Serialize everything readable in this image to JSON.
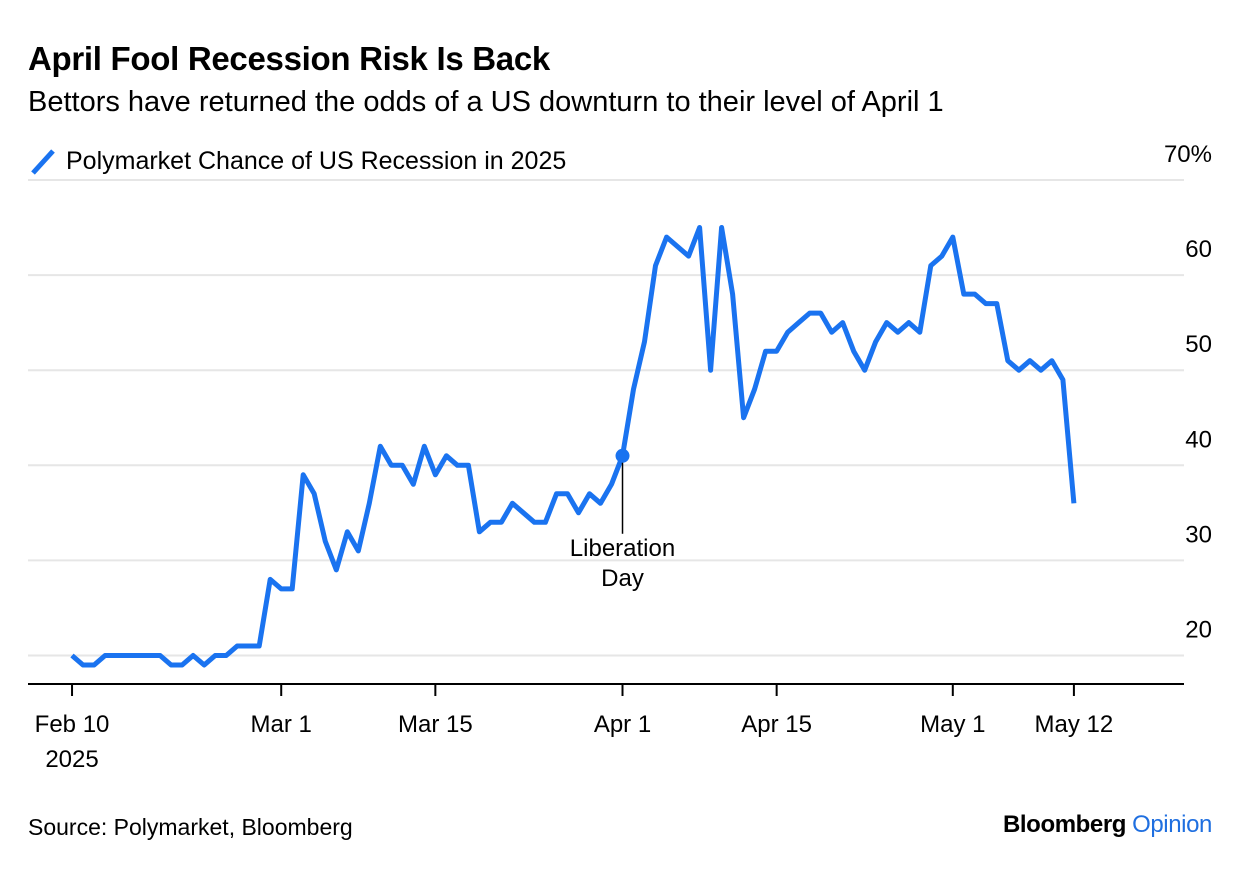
{
  "title": "April Fool Recession Risk Is Back",
  "subtitle": "Bettors have returned the odds of a US downturn to their level of April 1",
  "source": "Source: Polymarket, Bloomberg",
  "brand": {
    "name": "Bloomberg",
    "suffix": "Opinion",
    "suffix_color": "#1f6fe0"
  },
  "colors": {
    "line": "#1a73f0",
    "grid": "#e6e6e6",
    "axis": "#000000"
  },
  "chart_data": {
    "type": "line",
    "title": "April Fool Recession Risk Is Back",
    "subtitle": "Bettors have returned the odds of a US downturn to their level of April 1",
    "xlabel": "",
    "ylabel": "",
    "ylim": [
      17,
      70
    ],
    "xlim": [
      "2025-02-06",
      "2025-05-22"
    ],
    "y_ticks": [
      20,
      30,
      40,
      50,
      60,
      70
    ],
    "y_tick_labels": [
      "20",
      "30",
      "40",
      "50",
      "60",
      "70%"
    ],
    "y_axis_side": "right",
    "grid": true,
    "legend_position": "top-left",
    "x_ticks": [
      {
        "date": "2025-02-10",
        "label": "Feb 10",
        "sublabel": "2025"
      },
      {
        "date": "2025-03-01",
        "label": "Mar 1"
      },
      {
        "date": "2025-03-15",
        "label": "Mar 15"
      },
      {
        "date": "2025-04-01",
        "label": "Apr 1"
      },
      {
        "date": "2025-04-15",
        "label": "Apr 15"
      },
      {
        "date": "2025-05-01",
        "label": "May 1"
      },
      {
        "date": "2025-05-12",
        "label": "May 12"
      }
    ],
    "series": [
      {
        "name": "Polymarket Chance of US Recession in 2025",
        "points": [
          [
            "2025-02-10",
            20
          ],
          [
            "2025-02-11",
            19
          ],
          [
            "2025-02-12",
            19
          ],
          [
            "2025-02-13",
            20
          ],
          [
            "2025-02-14",
            20
          ],
          [
            "2025-02-15",
            20
          ],
          [
            "2025-02-16",
            20
          ],
          [
            "2025-02-17",
            20
          ],
          [
            "2025-02-18",
            20
          ],
          [
            "2025-02-19",
            19
          ],
          [
            "2025-02-20",
            19
          ],
          [
            "2025-02-21",
            20
          ],
          [
            "2025-02-22",
            19
          ],
          [
            "2025-02-23",
            20
          ],
          [
            "2025-02-24",
            20
          ],
          [
            "2025-02-25",
            21
          ],
          [
            "2025-02-26",
            21
          ],
          [
            "2025-02-27",
            21
          ],
          [
            "2025-02-28",
            28
          ],
          [
            "2025-03-01",
            27
          ],
          [
            "2025-03-02",
            27
          ],
          [
            "2025-03-03",
            39
          ],
          [
            "2025-03-04",
            37
          ],
          [
            "2025-03-05",
            32
          ],
          [
            "2025-03-06",
            29
          ],
          [
            "2025-03-07",
            33
          ],
          [
            "2025-03-08",
            31
          ],
          [
            "2025-03-09",
            36
          ],
          [
            "2025-03-10",
            42
          ],
          [
            "2025-03-11",
            40
          ],
          [
            "2025-03-12",
            40
          ],
          [
            "2025-03-13",
            38
          ],
          [
            "2025-03-14",
            42
          ],
          [
            "2025-03-15",
            39
          ],
          [
            "2025-03-16",
            41
          ],
          [
            "2025-03-17",
            40
          ],
          [
            "2025-03-18",
            40
          ],
          [
            "2025-03-19",
            33
          ],
          [
            "2025-03-20",
            34
          ],
          [
            "2025-03-21",
            34
          ],
          [
            "2025-03-22",
            36
          ],
          [
            "2025-03-23",
            35
          ],
          [
            "2025-03-24",
            34
          ],
          [
            "2025-03-25",
            34
          ],
          [
            "2025-03-26",
            37
          ],
          [
            "2025-03-27",
            37
          ],
          [
            "2025-03-28",
            35
          ],
          [
            "2025-03-29",
            37
          ],
          [
            "2025-03-30",
            36
          ],
          [
            "2025-03-31",
            38
          ],
          [
            "2025-04-01",
            41
          ],
          [
            "2025-04-02",
            48
          ],
          [
            "2025-04-03",
            53
          ],
          [
            "2025-04-04",
            61
          ],
          [
            "2025-04-05",
            64
          ],
          [
            "2025-04-06",
            63
          ],
          [
            "2025-04-07",
            62
          ],
          [
            "2025-04-08",
            65
          ],
          [
            "2025-04-09",
            50
          ],
          [
            "2025-04-10",
            65
          ],
          [
            "2025-04-11",
            58
          ],
          [
            "2025-04-12",
            45
          ],
          [
            "2025-04-13",
            48
          ],
          [
            "2025-04-14",
            52
          ],
          [
            "2025-04-15",
            52
          ],
          [
            "2025-04-16",
            54
          ],
          [
            "2025-04-17",
            55
          ],
          [
            "2025-04-18",
            56
          ],
          [
            "2025-04-19",
            56
          ],
          [
            "2025-04-20",
            54
          ],
          [
            "2025-04-21",
            55
          ],
          [
            "2025-04-22",
            52
          ],
          [
            "2025-04-23",
            50
          ],
          [
            "2025-04-24",
            53
          ],
          [
            "2025-04-25",
            55
          ],
          [
            "2025-04-26",
            54
          ],
          [
            "2025-04-27",
            55
          ],
          [
            "2025-04-28",
            54
          ],
          [
            "2025-04-29",
            61
          ],
          [
            "2025-04-30",
            62
          ],
          [
            "2025-05-01",
            64
          ],
          [
            "2025-05-02",
            58
          ],
          [
            "2025-05-03",
            58
          ],
          [
            "2025-05-04",
            57
          ],
          [
            "2025-05-05",
            57
          ],
          [
            "2025-05-06",
            51
          ],
          [
            "2025-05-07",
            50
          ],
          [
            "2025-05-08",
            51
          ],
          [
            "2025-05-09",
            50
          ],
          [
            "2025-05-10",
            51
          ],
          [
            "2025-05-11",
            49
          ],
          [
            "2025-05-12",
            36
          ]
        ]
      }
    ],
    "annotations": [
      {
        "date": "2025-04-01",
        "value": 41,
        "text": [
          "Liberation",
          "Day"
        ]
      }
    ]
  }
}
